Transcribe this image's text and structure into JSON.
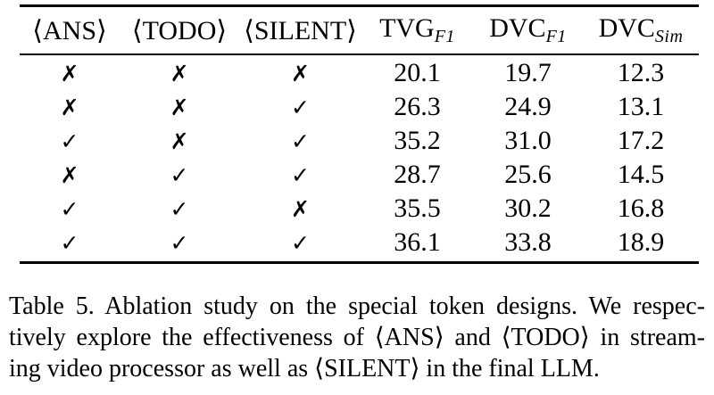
{
  "page": {
    "background_color": "#ffffff",
    "text_color": "#000000"
  },
  "table": {
    "headers": [
      {
        "base": "⟨ANS⟩",
        "sub": ""
      },
      {
        "base": "⟨TODO⟩",
        "sub": ""
      },
      {
        "base": "⟨SILENT⟩",
        "sub": ""
      },
      {
        "base": "TVG",
        "sub": "F1"
      },
      {
        "base": "DVC",
        "sub": "F1"
      },
      {
        "base": "DVC",
        "sub": "Sim"
      }
    ],
    "rows": [
      [
        "✗",
        "✗",
        "✗",
        "20.1",
        "19.7",
        "12.3"
      ],
      [
        "✗",
        "✗",
        "✓",
        "26.3",
        "24.9",
        "13.1"
      ],
      [
        "✓",
        "✗",
        "✓",
        "35.2",
        "31.0",
        "17.2"
      ],
      [
        "✗",
        "✓",
        "✓",
        "28.7",
        "25.6",
        "14.5"
      ],
      [
        "✓",
        "✓",
        "✗",
        "35.5",
        "30.2",
        "16.8"
      ],
      [
        "✓",
        "✓",
        "✓",
        "36.1",
        "33.8",
        "18.9"
      ]
    ]
  },
  "caption": {
    "lines": [
      "Table 5.  Ablation study on the special token designs.  We respec-",
      "tively explore the effectiveness of ⟨ANS⟩ and ⟨TODO⟩ in stream-",
      "ing video processor as well as ⟨SILENT⟩ in the final LLM."
    ]
  }
}
